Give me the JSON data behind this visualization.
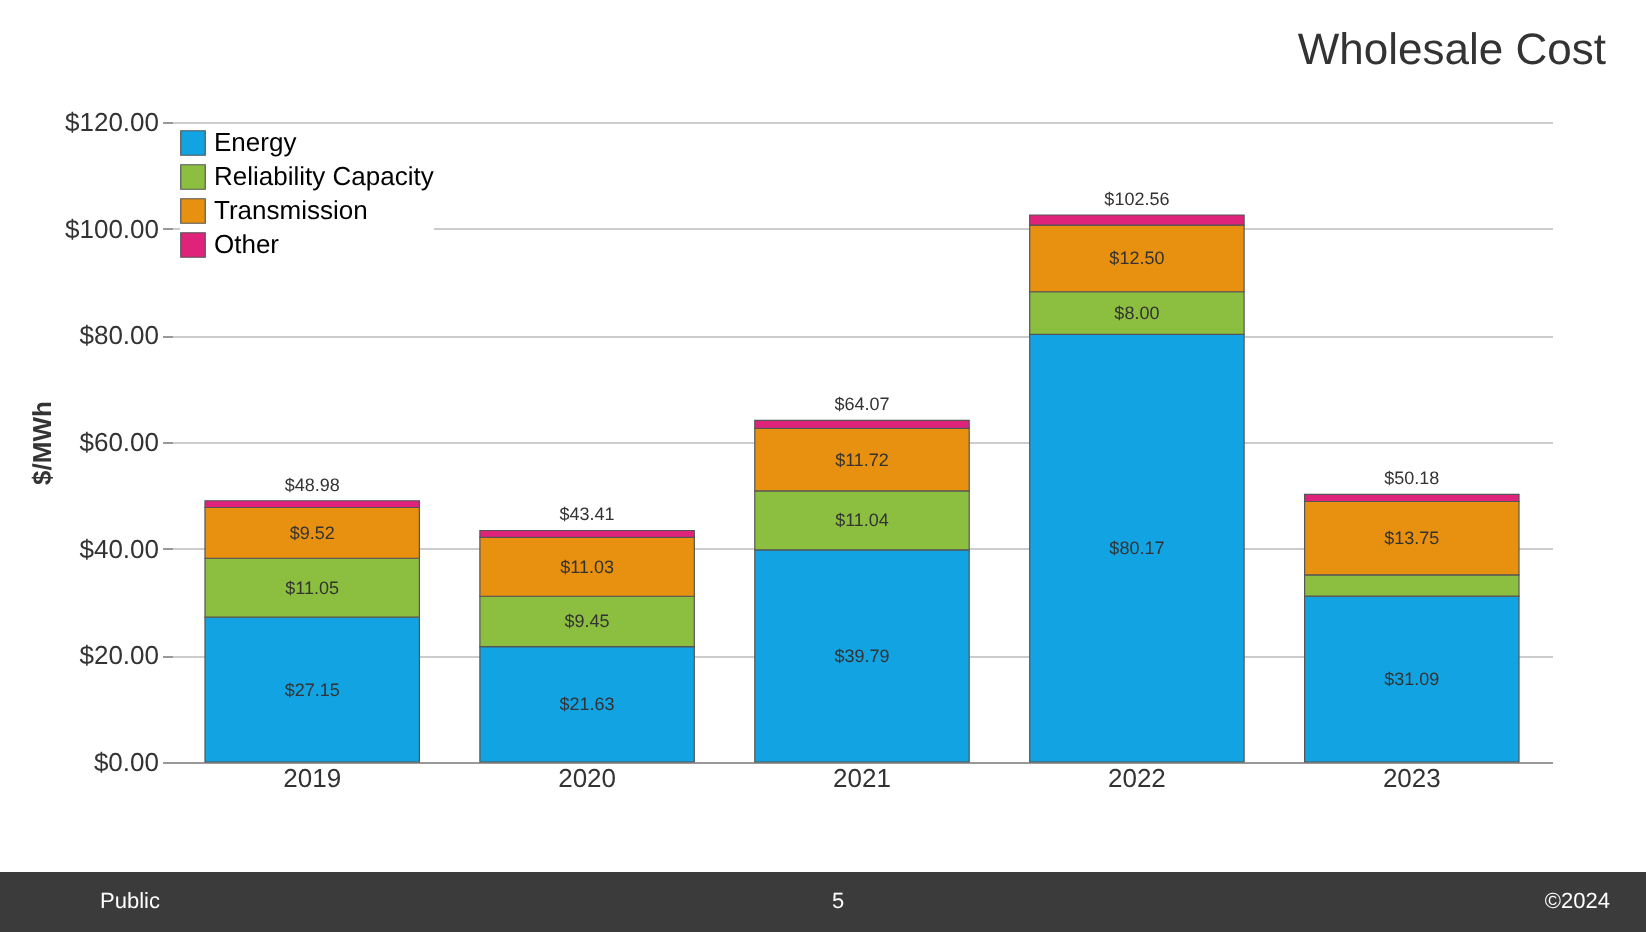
{
  "chart_data": {
    "type": "bar",
    "title": "Wholesale Cost",
    "ylabel": "$/MWh",
    "stacked": true,
    "categories": [
      "2019",
      "2020",
      "2021",
      "2022",
      "2023"
    ],
    "series": [
      {
        "name": "Energy",
        "color": "#12a3e2",
        "values": [
          27.15,
          21.63,
          39.79,
          80.17,
          31.09
        ],
        "value_labels": [
          "$27.15",
          "$21.63",
          "$39.79",
          "$80.17",
          "$31.09"
        ]
      },
      {
        "name": "Reliability Capacity",
        "color": "#8cbf3f",
        "values": [
          11.05,
          9.45,
          11.04,
          8.0,
          4.0
        ],
        "value_labels": [
          "$11.05",
          "$9.45",
          "$11.04",
          "$8.00",
          null
        ]
      },
      {
        "name": "Transmission",
        "color": "#e8900f",
        "values": [
          9.52,
          11.03,
          11.72,
          12.5,
          13.75
        ],
        "value_labels": [
          "$9.52",
          "$11.03",
          "$11.72",
          "$12.50",
          "$13.75"
        ]
      },
      {
        "name": "Other",
        "color": "#e0237a",
        "values": [
          1.26,
          1.3,
          1.52,
          1.89,
          1.34
        ]
      }
    ],
    "totals": [
      "$48.98",
      "$43.41",
      "$64.07",
      "$102.56",
      "$50.18"
    ],
    "ylim": [
      0,
      120
    ],
    "yticks": [
      {
        "value": 0,
        "label": "$0.00"
      },
      {
        "value": 20,
        "label": "$20.00"
      },
      {
        "value": 40,
        "label": "$40.00"
      },
      {
        "value": 60,
        "label": "$60.00"
      },
      {
        "value": 80,
        "label": "$80.00"
      },
      {
        "value": 100,
        "label": "$100.00"
      },
      {
        "value": 120,
        "label": "$120.00"
      }
    ],
    "grid": "y",
    "legend": "top left",
    "annotations": [
      "Public",
      "5",
      "©2024"
    ]
  }
}
